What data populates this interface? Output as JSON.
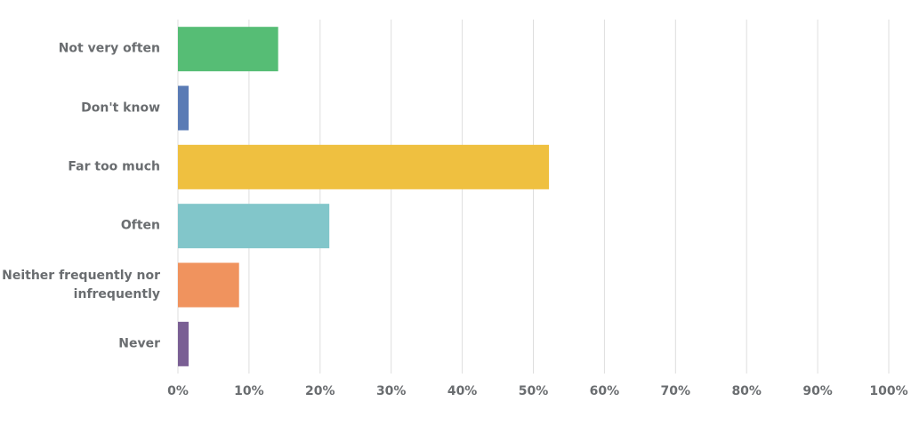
{
  "chart_data": {
    "type": "bar",
    "orientation": "horizontal",
    "categories": [
      "Not very often",
      "Don't know",
      "Far too much",
      "Often",
      "Neither frequently nor infrequently",
      "Never"
    ],
    "values": [
      14.1,
      1.5,
      52.2,
      21.3,
      8.6,
      1.5
    ],
    "colors": [
      "#56bd75",
      "#5a7bb5",
      "#efc040",
      "#82c6ca",
      "#f0935e",
      "#7a5f94"
    ],
    "xlim": [
      0,
      100
    ],
    "xticks": [
      {
        "value": 0,
        "label": "0%"
      },
      {
        "value": 10,
        "label": "10%"
      },
      {
        "value": 20,
        "label": "20%"
      },
      {
        "value": 30,
        "label": "30%"
      },
      {
        "value": 40,
        "label": "40%"
      },
      {
        "value": 50,
        "label": "50%"
      },
      {
        "value": 60,
        "label": "60%"
      },
      {
        "value": 70,
        "label": "70%"
      },
      {
        "value": 80,
        "label": "80%"
      },
      {
        "value": 90,
        "label": "90%"
      },
      {
        "value": 100,
        "label": "100%"
      }
    ],
    "grid": true
  }
}
